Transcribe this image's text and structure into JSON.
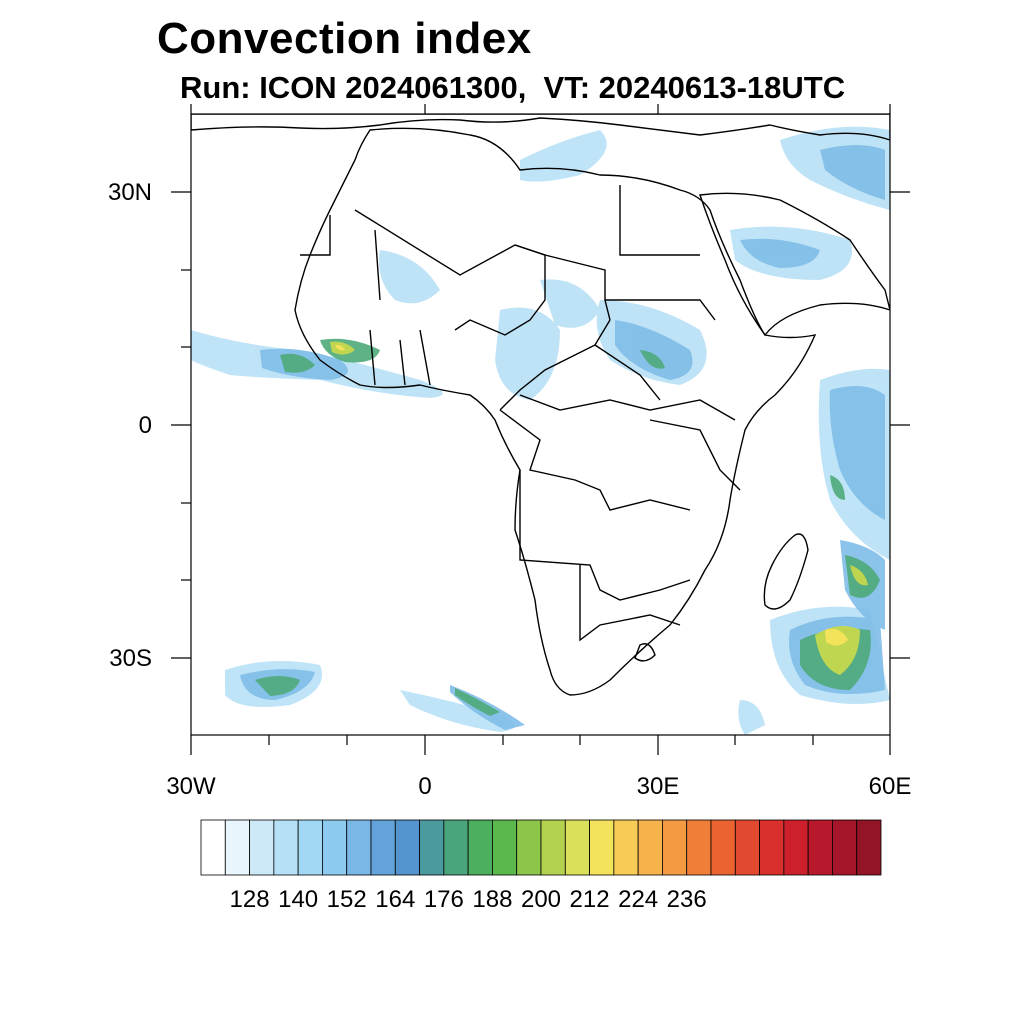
{
  "header": {
    "title": "Convection index",
    "subtitle": "Run: ICON 2024061300,  VT: 20240613-18UTC"
  },
  "map": {
    "lat_labels": [
      "30N",
      "0",
      "30S"
    ],
    "lon_labels": [
      "30W",
      "0",
      "30E",
      "60E"
    ],
    "lat_range": [
      -40,
      40
    ],
    "lon_range": [
      -30,
      60
    ],
    "colors": {
      "land_line": "#000000",
      "light_blue": "#a6d9f5",
      "mid_blue": "#6fb3e3",
      "teal": "#4ea77a",
      "green": "#5cb85c",
      "lime": "#a9d14e",
      "yellow": "#f2e35a"
    }
  },
  "colorbar": {
    "tick_labels": [
      "128",
      "140",
      "152",
      "164",
      "176",
      "188",
      "200",
      "212",
      "224",
      "236"
    ],
    "colors": [
      "#ffffff",
      "#e9f5fc",
      "#cde9f7",
      "#b6e0f6",
      "#a2d8f4",
      "#8dcaf0",
      "#79b7e6",
      "#64a3da",
      "#5495cf",
      "#4a9a9e",
      "#4aa57c",
      "#4caf5e",
      "#5ab84c",
      "#8cc54a",
      "#b3d24f",
      "#dbe05a",
      "#f2e25c",
      "#f7cb55",
      "#f6b34c",
      "#f49a42",
      "#f07e38",
      "#ea6331",
      "#e2492e",
      "#d9302d",
      "#cc202c",
      "#b8182b",
      "#a5162a",
      "#921426"
    ]
  }
}
